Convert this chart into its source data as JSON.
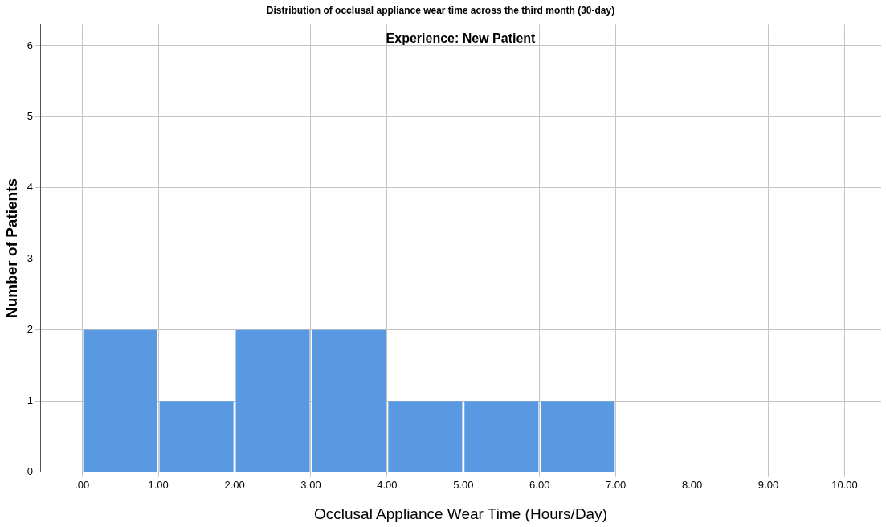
{
  "chart_data": {
    "type": "histogram",
    "title": "Distribution of occlusal appliance wear time across the third month (30-day)",
    "subtitle": "Experience: New Patient",
    "xlabel": "Occlusal Appliance Wear Time (Hours/Day)",
    "ylabel": "Number of Patients",
    "bins": [
      0,
      1,
      2,
      3,
      4,
      5,
      6,
      7
    ],
    "values": [
      2,
      1,
      2,
      2,
      1,
      1,
      1
    ],
    "color": "#5899e2",
    "xlim": [
      -0.55,
      10.48
    ],
    "xticks": [
      {
        "value": 0,
        "label": ".00"
      },
      {
        "value": 1,
        "label": "1.00"
      },
      {
        "value": 2,
        "label": "2.00"
      },
      {
        "value": 3,
        "label": "3.00"
      },
      {
        "value": 4,
        "label": "4.00"
      },
      {
        "value": 5,
        "label": "5.00"
      },
      {
        "value": 6,
        "label": "6.00"
      },
      {
        "value": 7,
        "label": "7.00"
      },
      {
        "value": 8,
        "label": "8.00"
      },
      {
        "value": 9,
        "label": "9.00"
      },
      {
        "value": 10,
        "label": "10.00"
      }
    ],
    "ylim": [
      0,
      6.3
    ],
    "yticks": [
      0,
      1,
      2,
      3,
      4,
      5,
      6
    ],
    "grid": true
  }
}
